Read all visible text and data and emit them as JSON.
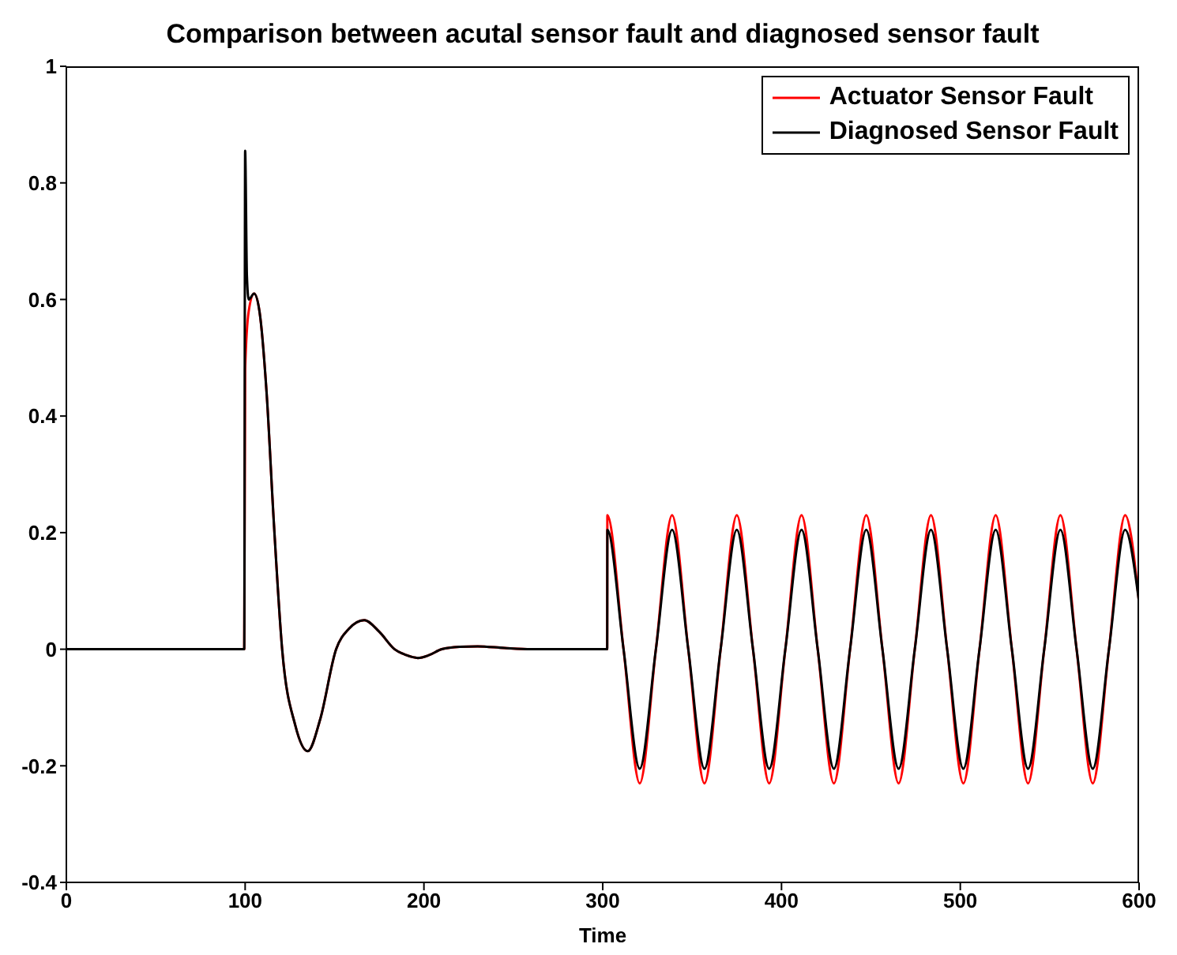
{
  "chart_data": {
    "type": "line",
    "title": "Comparison between acutal sensor fault and diagnosed sensor fault",
    "xlabel": "Time",
    "xlim": [
      0,
      600
    ],
    "xticks": [
      0,
      100,
      200,
      300,
      400,
      500,
      600
    ],
    "ylim": [
      -0.4,
      1
    ],
    "yticks": [
      -0.4,
      -0.2,
      0,
      0.2,
      0.4,
      0.6,
      0.8,
      1
    ],
    "grid": false,
    "legend": "top right",
    "marker": "none",
    "line_style": "solid",
    "series": [
      {
        "name": "Actuator Sensor Fault",
        "color": "#ff0000",
        "x": [
          0,
          99.5,
          100,
          102,
          105,
          108,
          112,
          116,
          120.7,
          128,
          135,
          142,
          150.9,
          158,
          166.6,
          175,
          183.6,
          190,
          196.6,
          203,
          210,
          220,
          230,
          245,
          260,
          280,
          302.5,
          302.6,
          311.65,
          320.7,
          329.75,
          338.8,
          347.85,
          356.9,
          365.95,
          375.0,
          384.05,
          393.1,
          402.15,
          411.2,
          420.25,
          429.3,
          438.35,
          447.4,
          456.45,
          465.5,
          474.55,
          483.6,
          492.65,
          501.7,
          510.75,
          519.8,
          528.85,
          537.9,
          546.95,
          556.0,
          565.05,
          574.1,
          583.15,
          592.2,
          600
        ],
        "values": [
          0,
          0,
          0.48,
          0.58,
          0.61,
          0.58,
          0.44,
          0.22,
          0,
          -0.13,
          -0.175,
          -0.12,
          0,
          0.035,
          0.05,
          0.03,
          0,
          -0.01,
          -0.015,
          -0.01,
          0,
          0.004,
          0.005,
          0.002,
          0,
          0,
          0,
          0.23,
          0,
          -0.23,
          0,
          0.23,
          0,
          -0.23,
          0,
          0.23,
          0,
          -0.23,
          0,
          0.23,
          0,
          -0.23,
          0,
          0.23,
          0,
          -0.23,
          0,
          0.23,
          0,
          -0.23,
          0,
          0.23,
          0,
          -0.23,
          0,
          0.23,
          0,
          -0.23,
          0,
          0.23,
          0.08
        ]
      },
      {
        "name": "Diagnosed Sensor Fault",
        "color": "#000000",
        "x": [
          0,
          99.5,
          100,
          101,
          102,
          105,
          108,
          112,
          116,
          120.7,
          128,
          135,
          142,
          150.9,
          158,
          166.6,
          175,
          183.6,
          190,
          196.6,
          203,
          210,
          220,
          230,
          245,
          260,
          280,
          302.5,
          302.6,
          311.65,
          320.7,
          329.75,
          338.8,
          347.85,
          356.9,
          365.95,
          375.0,
          384.05,
          393.1,
          402.15,
          411.2,
          420.25,
          429.3,
          438.35,
          447.4,
          456.45,
          465.5,
          474.55,
          483.6,
          492.65,
          501.7,
          510.75,
          519.8,
          528.85,
          537.9,
          546.95,
          556.0,
          565.05,
          574.1,
          583.15,
          592.2,
          600
        ],
        "values": [
          0,
          0,
          0.855,
          0.64,
          0.6,
          0.61,
          0.58,
          0.44,
          0.22,
          0,
          -0.13,
          -0.175,
          -0.12,
          0,
          0.035,
          0.05,
          0.03,
          0,
          -0.01,
          -0.015,
          -0.01,
          0,
          0.004,
          0.005,
          0.002,
          0,
          0,
          0,
          0.205,
          0,
          -0.205,
          0,
          0.205,
          0,
          -0.205,
          0,
          0.205,
          0,
          -0.205,
          0,
          0.205,
          0,
          -0.205,
          0,
          0.205,
          0,
          -0.205,
          0,
          0.205,
          0,
          -0.205,
          0,
          0.205,
          0,
          -0.205,
          0,
          0.205,
          0,
          -0.205,
          0,
          0.205,
          0.08
        ]
      }
    ]
  }
}
